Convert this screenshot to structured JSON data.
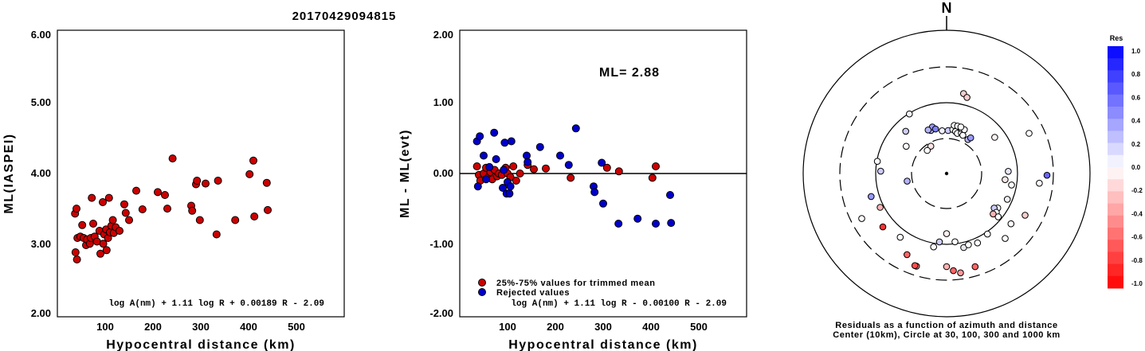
{
  "title": "20170429094815",
  "colors": {
    "accepted": "#cc0000",
    "rejected": "#0000cc"
  },
  "chart_data": [
    {
      "type": "scatter",
      "id": "left",
      "xlabel": "Hypocentral distance (km)",
      "ylabel": "ML(IASPEI)",
      "xlim": [
        0,
        600
      ],
      "ylim": [
        2.0,
        6.0
      ],
      "xticks": [
        "100",
        "200",
        "300",
        "400",
        "500"
      ],
      "yticks": [
        "2.00",
        "3.00",
        "4.00",
        "5.00",
        "6.00"
      ],
      "formula": "log A(nm) + 1.11 log R + 0.00189 R - 2.09",
      "series": [
        {
          "color": "red",
          "points": [
            [
              37,
              3.44
            ],
            [
              40,
              3.51
            ],
            [
              42,
              3.1
            ],
            [
              38,
              2.9
            ],
            [
              41,
              2.8
            ],
            [
              48,
              3.12
            ],
            [
              52,
              3.28
            ],
            [
              55,
              3.1
            ],
            [
              60,
              3.0
            ],
            [
              62,
              3.08
            ],
            [
              68,
              3.02
            ],
            [
              70,
              3.1
            ],
            [
              72,
              3.66
            ],
            [
              75,
              3.3
            ],
            [
              78,
              3.12
            ],
            [
              83,
              3.05
            ],
            [
              88,
              3.2
            ],
            [
              90,
              2.88
            ],
            [
              95,
              3.6
            ],
            [
              96,
              3.02
            ],
            [
              98,
              3.15
            ],
            [
              102,
              3.22
            ],
            [
              103,
              2.93
            ],
            [
              106,
              3.1
            ],
            [
              108,
              3.66
            ],
            [
              110,
              3.18
            ],
            [
              113,
              3.27
            ],
            [
              116,
              3.35
            ],
            [
              118,
              3.17
            ],
            [
              122,
              3.25
            ],
            [
              130,
              3.2
            ],
            [
              140,
              3.57
            ],
            [
              143,
              3.45
            ],
            [
              150,
              3.35
            ],
            [
              165,
              3.76
            ],
            [
              178,
              3.5
            ],
            [
              210,
              3.74
            ],
            [
              225,
              3.7
            ],
            [
              230,
              3.51
            ],
            [
              241,
              4.21
            ],
            [
              280,
              3.55
            ],
            [
              282,
              3.48
            ],
            [
              290,
              3.85
            ],
            [
              292,
              3.9
            ],
            [
              298,
              3.35
            ],
            [
              310,
              3.86
            ],
            [
              333,
              3.15
            ],
            [
              336,
              3.9
            ],
            [
              372,
              3.35
            ],
            [
              402,
              3.99
            ],
            [
              410,
              4.18
            ],
            [
              412,
              3.4
            ],
            [
              438,
              3.87
            ],
            [
              440,
              3.49
            ]
          ]
        }
      ]
    },
    {
      "type": "scatter",
      "id": "middle",
      "xlabel": "Hypocentral distance (km)",
      "ylabel": "ML - ML(evt)",
      "xlim": [
        0,
        600
      ],
      "ylim": [
        -2.0,
        2.0
      ],
      "xticks": [
        "100",
        "200",
        "300",
        "400",
        "500"
      ],
      "yticks": [
        "-2.00",
        "-1.00",
        "0.00",
        "1.00",
        "2.00"
      ],
      "annotation": "ML= 2.88",
      "formula": "log A(nm) + 1.11 log R - 0.00100 R - 2.09",
      "legend": [
        "25%-75% values for trimmed mean",
        "Rejected values"
      ],
      "series": [
        {
          "name": "25%-75% values for trimmed mean",
          "color": "red",
          "points": [
            [
              36,
              0.1
            ],
            [
              40,
              -0.02
            ],
            [
              43,
              -0.1
            ],
            [
              50,
              0.0
            ],
            [
              55,
              0.08
            ],
            [
              60,
              -0.05
            ],
            [
              64,
              0.02
            ],
            [
              68,
              -0.08
            ],
            [
              73,
              0.05
            ],
            [
              78,
              -0.04
            ],
            [
              82,
              0.0
            ],
            [
              88,
              -0.02
            ],
            [
              96,
              0.08
            ],
            [
              100,
              0.0
            ],
            [
              106,
              -0.05
            ],
            [
              112,
              0.1
            ],
            [
              118,
              -0.1
            ],
            [
              126,
              0.0
            ],
            [
              142,
              0.12
            ],
            [
              155,
              0.06
            ],
            [
              180,
              0.07
            ],
            [
              232,
              -0.06
            ],
            [
              308,
              0.08
            ],
            [
              333,
              0.03
            ],
            [
              403,
              -0.06
            ],
            [
              410,
              0.1
            ]
          ]
        },
        {
          "name": "Rejected values",
          "color": "blue",
          "points": [
            [
              36,
              0.45
            ],
            [
              38,
              -0.18
            ],
            [
              42,
              0.52
            ],
            [
              50,
              0.25
            ],
            [
              55,
              -0.08
            ],
            [
              62,
              0.09
            ],
            [
              72,
              0.57
            ],
            [
              76,
              0.2
            ],
            [
              90,
              -0.2
            ],
            [
              92,
              0.05
            ],
            [
              94,
              0.43
            ],
            [
              98,
              -0.28
            ],
            [
              100,
              -0.12
            ],
            [
              104,
              -0.28
            ],
            [
              106,
              -0.18
            ],
            [
              108,
              0.45
            ],
            [
              140,
              0.25
            ],
            [
              142,
              0.16
            ],
            [
              168,
              0.37
            ],
            [
              210,
              0.25
            ],
            [
              228,
              0.12
            ],
            [
              243,
              0.63
            ],
            [
              280,
              -0.18
            ],
            [
              282,
              -0.26
            ],
            [
              297,
              0.15
            ],
            [
              300,
              -0.42
            ],
            [
              332,
              -0.7
            ],
            [
              372,
              -0.63
            ],
            [
              410,
              -0.7
            ],
            [
              440,
              -0.3
            ],
            [
              442,
              -0.69
            ]
          ]
        }
      ]
    },
    {
      "type": "polar-scatter",
      "id": "residuals",
      "north_label": "N",
      "caption_lines": [
        "Residuals as a function of azimuth and distance",
        "Center (10km), Circle at 30, 100, 300 and 1000 km"
      ],
      "colorbar": {
        "title": "Res",
        "labels": [
          "1.0",
          "0.8",
          "0.6",
          "0.4",
          "0.2",
          "0.0",
          "-0.2",
          "-0.4",
          "-0.6",
          "-0.8",
          "-1.0"
        ]
      },
      "stations": [
        [
          354,
          0.3,
          0.05
        ],
        [
          2,
          0.3,
          0.2
        ],
        [
          8,
          0.31,
          0.0
        ],
        [
          12,
          0.3,
          0.0
        ],
        [
          15,
          0.29,
          0.0
        ],
        [
          20,
          0.3,
          0.0
        ],
        [
          23,
          0.29,
          0.0
        ],
        [
          18,
          0.33,
          0.0
        ],
        [
          22,
          0.33,
          0.0
        ],
        [
          9,
          0.34,
          0.0
        ],
        [
          13,
          0.34,
          0.0
        ],
        [
          17,
          0.34,
          0.0
        ],
        [
          340,
          0.32,
          0.3
        ],
        [
          343,
          0.34,
          0.4
        ],
        [
          337,
          0.33,
          0.3
        ],
        [
          346,
          0.32,
          0.5
        ],
        [
          32,
          0.28,
          0.3
        ],
        [
          34,
          0.3,
          0.4
        ],
        [
          330,
          0.22,
          -0.1
        ],
        [
          320,
          0.21,
          0.0
        ],
        [
          304,
          0.34,
          0.0
        ],
        [
          316,
          0.41,
          0.2
        ],
        [
          328,
          0.49,
          0.05
        ],
        [
          12,
          0.57,
          -0.2
        ],
        [
          15,
          0.55,
          -0.2
        ],
        [
          53,
          0.42,
          -0.05
        ],
        [
          280,
          0.49,
          0.0
        ],
        [
          272,
          0.46,
          0.2
        ],
        [
          88,
          0.43,
          0.1
        ],
        [
          64,
          0.64,
          0.0
        ],
        [
          100,
          0.46,
          0.0
        ],
        [
          96,
          0.41,
          -0.1
        ],
        [
          259,
          0.28,
          0.3
        ],
        [
          253,
          0.55,
          0.4
        ],
        [
          243,
          0.52,
          -0.3
        ],
        [
          242,
          0.67,
          0.0
        ],
        [
          124,
          0.43,
          0.0
        ],
        [
          126,
          0.41,
          0.2
        ],
        [
          128,
          0.44,
          0.0
        ],
        [
          130,
          0.47,
          0.0
        ],
        [
          131,
          0.43,
          -0.3
        ],
        [
          113,
          0.46,
          0.05
        ],
        [
          118,
          0.62,
          -0.2
        ],
        [
          91,
          0.7,
          0.6
        ],
        [
          96,
          0.65,
          0.0
        ],
        [
          138,
          0.61,
          0.0
        ],
        [
          128,
          0.57,
          0.0
        ],
        [
          180,
          0.42,
          -0.05
        ],
        [
          173,
          0.48,
          0.0
        ],
        [
          167,
          0.53,
          0.1
        ],
        [
          163,
          0.52,
          0.0
        ],
        [
          156,
          0.53,
          0.0
        ],
        [
          146,
          0.51,
          0.0
        ],
        [
          186,
          0.48,
          0.2
        ],
        [
          190,
          0.52,
          0.0
        ],
        [
          180,
          0.65,
          -0.3
        ],
        [
          176,
          0.68,
          -0.6
        ],
        [
          172,
          0.7,
          -0.4
        ],
        [
          163,
          0.68,
          -0.6
        ],
        [
          216,
          0.55,
          0.0
        ],
        [
          206,
          0.63,
          -0.6
        ],
        [
          230,
          0.58,
          -0.8
        ],
        [
          198,
          0.68,
          -0.4
        ],
        [
          199,
          0.68,
          -0.7
        ]
      ]
    }
  ]
}
